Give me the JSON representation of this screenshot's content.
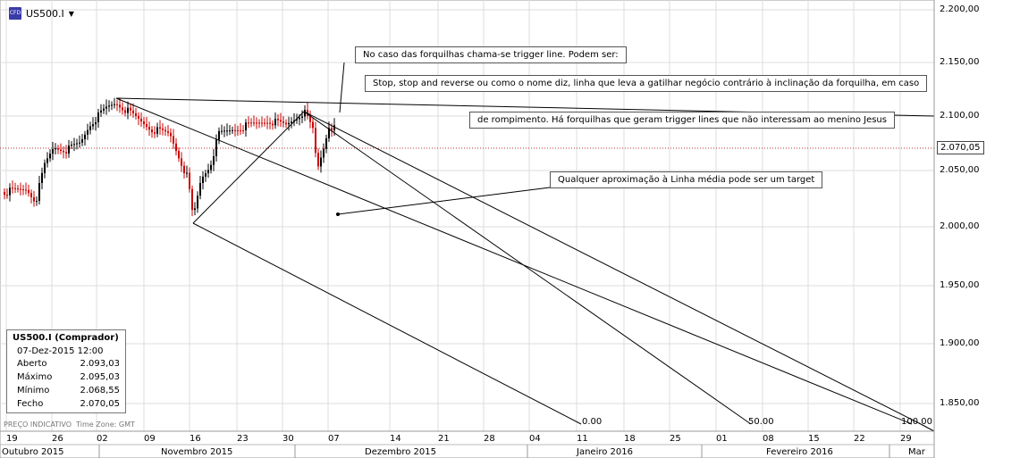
{
  "header": {
    "symbol": "US500.I",
    "icon_text": "CFD I"
  },
  "current_price": "2.070,05",
  "y_axis": [
    "2.200,00",
    "2.150,00",
    "2.100,00",
    "2.050,00",
    "2.000,00",
    "1.950,00",
    "1.900,00",
    "1.850,00"
  ],
  "x_axis": {
    "days": [
      "19",
      "26",
      "02",
      "09",
      "16",
      "23",
      "30",
      "07",
      "14",
      "21",
      "28",
      "04",
      "11",
      "18",
      "25",
      "01",
      "08",
      "15",
      "22",
      "29"
    ],
    "months": [
      "Outubro 2015",
      "Novembro 2015",
      "Dezembro 2015",
      "Janeiro 2016",
      "Fevereiro 2016",
      "Mar"
    ]
  },
  "fib_labels": [
    "0.00",
    "50.00",
    "100.00"
  ],
  "annotations": {
    "a1": "No caso das forquilhas chama-se trigger line. Podem ser:",
    "a2": "Stop, stop and reverse ou como o nome diz, linha que leva a gatilhar negócio contrário à inclinação da forquilha, em caso",
    "a3": "de rompimento. Há forquilhas que geram trigger lines que não interessam ao menino Jesus",
    "a4": "Qualquer aproximação à Linha média pode ser um target"
  },
  "info_box": {
    "title": "US500.I (Comprador)",
    "date": "07-Dez-2015 12:00",
    "rows": [
      {
        "label": "Aberto",
        "value": "2.093,03"
      },
      {
        "label": "Máximo",
        "value": "2.095,03"
      },
      {
        "label": "Mínimo",
        "value": "2.068,55"
      },
      {
        "label": "Fecho",
        "value": "2.070,05"
      }
    ]
  },
  "footnote": {
    "left": "PREÇO INDICATIVO",
    "right": "Time Zone: GMT"
  },
  "colors": {
    "up": "#000000",
    "down": "#cc0000",
    "grid": "#d8d8d8",
    "current_line": "#b33"
  }
}
